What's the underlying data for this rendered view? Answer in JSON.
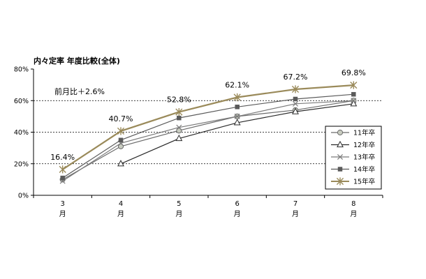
{
  "chart_data": {
    "type": "line",
    "title": "内々定率 年度比較(全体)",
    "xlabel": "",
    "ylabel": "",
    "ylim": [
      0,
      80
    ],
    "yticks": [
      "0%",
      "20%",
      "40%",
      "60%",
      "80%"
    ],
    "grid": "horizontal dashed",
    "legend_position": "right",
    "categories": [
      {
        "num": "3",
        "unit": "月"
      },
      {
        "num": "4",
        "unit": "月"
      },
      {
        "num": "5",
        "unit": "月"
      },
      {
        "num": "6",
        "unit": "月"
      },
      {
        "num": "7",
        "unit": "月"
      },
      {
        "num": "8",
        "unit": "月"
      }
    ],
    "series": [
      {
        "name": "11年卒",
        "marker": "circle",
        "color": "#6b6b6b",
        "values": [
          10,
          31,
          41,
          50,
          54,
          60
        ]
      },
      {
        "name": "12年卒",
        "marker": "triangle",
        "color": "#2b2b2b",
        "values": [
          null,
          20,
          36,
          46,
          53,
          58
        ]
      },
      {
        "name": "13年卒",
        "marker": "x",
        "color": "#7a7a7a",
        "values": [
          9,
          33,
          43,
          50,
          58,
          60
        ]
      },
      {
        "name": "14年卒",
        "marker": "square",
        "color": "#5a5a5a",
        "values": [
          11,
          35,
          49,
          56,
          61,
          64
        ]
      },
      {
        "name": "15年卒",
        "marker": "star",
        "color": "#9a8a5a",
        "values": [
          16.4,
          40.7,
          52.8,
          62.1,
          67.2,
          69.8
        ]
      }
    ],
    "data_labels": [
      "16.4%",
      "40.7%",
      "52.8%",
      "62.1%",
      "67.2%",
      "69.8%"
    ],
    "annotation": "前月比＋2.6%"
  }
}
